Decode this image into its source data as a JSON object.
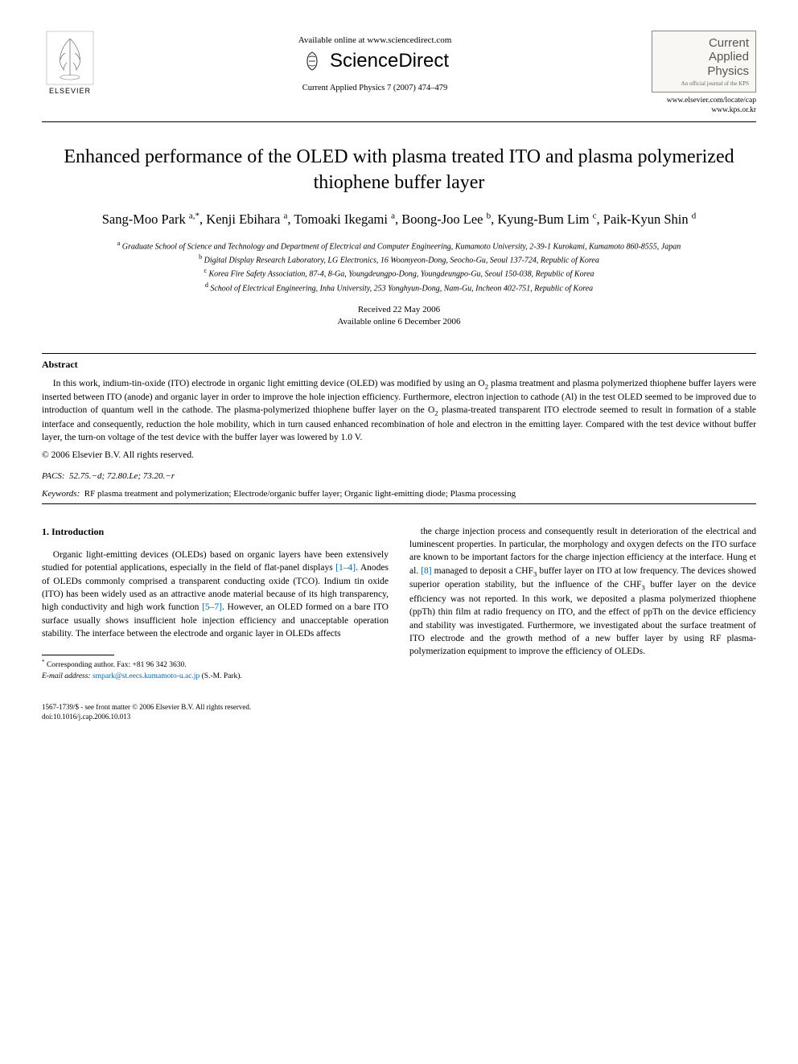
{
  "header": {
    "available_online": "Available online at www.sciencedirect.com",
    "sciencedirect": "ScienceDirect",
    "journal_ref": "Current Applied Physics 7 (2007) 474–479",
    "elsevier_label": "ELSEVIER",
    "journal_box": {
      "name_line1": "Current",
      "name_line2": "Applied",
      "name_line3": "Physics",
      "subtitle": "An official journal of the KPS",
      "link1": "www.elsevier.com/locate/cap",
      "link2": "www.kps.or.kr"
    }
  },
  "title": "Enhanced performance of the OLED with plasma treated ITO and plasma polymerized thiophene buffer layer",
  "authors_html": "Sang-Moo Park <sup>a,*</sup>, Kenji Ebihara <sup>a</sup>, Tomoaki Ikegami <sup>a</sup>, Boong-Joo Lee <sup>b</sup>, Kyung-Bum Lim <sup>c</sup>, Paik-Kyun Shin <sup>d</sup>",
  "affiliations": {
    "a": "Graduate School of Science and Technology and Department of Electrical and Computer Engineering, Kumamoto University, 2-39-1 Kurokami, Kumamoto 860-8555, Japan",
    "b": "Digital Display Research Laboratory, LG Electronics, 16 Woomyeon-Dong, Seocho-Gu, Seoul 137-724, Republic of Korea",
    "c": "Korea Fire Safety Association, 87-4, 8-Ga, Youngdeungpo-Dong, Youngdeungpo-Gu, Seoul 150-038, Republic of Korea",
    "d": "School of Electrical Engineering, Inha University, 253 Yonghyun-Dong, Nam-Gu, Incheon 402-751, Republic of Korea"
  },
  "dates": {
    "received": "Received 22 May 2006",
    "online": "Available online 6 December 2006"
  },
  "abstract": {
    "label": "Abstract",
    "text": "In this work, indium-tin-oxide (ITO) electrode in organic light emitting device (OLED) was modified by using an O₂ plasma treatment and plasma polymerized thiophene buffer layers were inserted between ITO (anode) and organic layer in order to improve the hole injection efficiency. Furthermore, electron injection to cathode (Al) in the test OLED seemed to be improved due to introduction of quantum well in the cathode. The plasma-polymerized thiophene buffer layer on the O₂ plasma-treated transparent ITO electrode seemed to result in formation of a stable interface and consequently, reduction the hole mobility, which in turn caused enhanced recombination of hole and electron in the emitting layer. Compared with the test device without buffer layer, the turn-on voltage of the test device with the buffer layer was lowered by 1.0 V.",
    "copyright": "© 2006 Elsevier B.V. All rights reserved."
  },
  "pacs": {
    "label": "PACS:",
    "codes": "52.75.−d; 72.80.Le; 73.20.−r"
  },
  "keywords": {
    "label": "Keywords:",
    "text": "RF plasma treatment and polymerization; Electrode/organic buffer layer; Organic light-emitting diode; Plasma processing"
  },
  "body": {
    "section_heading": "1. Introduction",
    "col1": "Organic light-emitting devices (OLEDs) based on organic layers have been extensively studied for potential applications, especially in the field of flat-panel displays [1–4]. Anodes of OLEDs commonly comprised a transparent conducting oxide (TCO). Indium tin oxide (ITO) has been widely used as an attractive anode material because of its high transparency, high conductivity and high work function [5–7]. However, an OLED formed on a bare ITO surface usually shows insufficient hole injection efficiency and unacceptable operation stability. The interface between the electrode and organic layer in OLEDs affects",
    "col2": "the charge injection process and consequently result in deterioration of the electrical and luminescent properties. In particular, the morphology and oxygen defects on the ITO surface are known to be important factors for the charge injection efficiency at the interface. Hung et al. [8] managed to deposit a CHF₃ buffer layer on ITO at low frequency. The devices showed superior operation stability, but the influence of the CHF₃ buffer layer on the device efficiency was not reported. In this work, we deposited a plasma polymerized thiophene (ppTh) thin film at radio frequency on ITO, and the effect of ppTh on the device efficiency and stability was investigated. Furthermore, we investigated about the surface treatment of ITO electrode and the growth method of a new buffer layer by using RF plasma-polymerization equipment to improve the efficiency of OLEDs."
  },
  "footnote": {
    "corr": "Corresponding author. Fax: +81 96 342 3630.",
    "email_label": "E-mail address:",
    "email": "smpark@st.eecs.kumamoto-u.ac.jp",
    "email_name": "(S.-M. Park)."
  },
  "footer": {
    "line1": "1567-1739/$ - see front matter © 2006 Elsevier B.V. All rights reserved.",
    "line2": "doi:10.1016/j.cap.2006.10.013"
  },
  "refs": {
    "r14": "[1–4]",
    "r57": "[5–7]",
    "r8": "[8]"
  },
  "colors": {
    "text": "#000000",
    "link": "#0066aa",
    "background": "#ffffff",
    "journal_box_bg": "#f8f7f4",
    "journal_box_border": "#888888",
    "journal_name_color": "#555555"
  }
}
